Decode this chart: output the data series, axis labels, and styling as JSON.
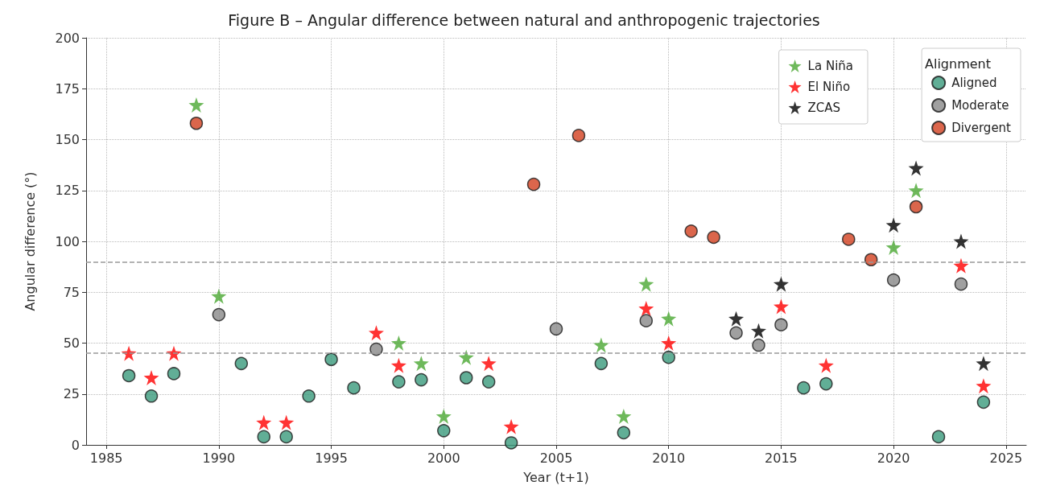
{
  "chart_data": {
    "type": "scatter",
    "title": "Figure B – Angular difference between natural and anthropogenic trajectories",
    "xlabel": "Year (t+1)",
    "ylabel": "Angular difference (°)",
    "legend_title": "Alignment",
    "xlim": [
      1984.1,
      2025.9
    ],
    "xticks": [
      1985,
      1990,
      1995,
      2000,
      2005,
      2010,
      2015,
      2020,
      2025
    ],
    "ylim": [
      0,
      200
    ],
    "yticks": [
      0,
      25,
      50,
      75,
      100,
      125,
      150,
      175,
      200
    ],
    "grid": true,
    "legend": "top right",
    "ref_lines": [
      {
        "axis": "y",
        "value": 45,
        "color": "#999999",
        "line_style": "dashed"
      },
      {
        "axis": "y",
        "value": 90,
        "color": "#999999",
        "line_style": "dashed"
      }
    ],
    "series": [
      {
        "name": "La Niña",
        "color": "#4aa832",
        "marker": "star",
        "x": [
          1989,
          1990,
          1998,
          1999,
          2000,
          2001,
          2007,
          2008,
          2009,
          2010,
          2020,
          2021
        ],
        "values": [
          167,
          73,
          50,
          40,
          14,
          43,
          49,
          14,
          79,
          62,
          97,
          125
        ]
      },
      {
        "name": "El Niño",
        "color": "#ff0000",
        "marker": "star",
        "x": [
          1986,
          1987,
          1988,
          1992,
          1993,
          1997,
          1998,
          2002,
          2003,
          2009,
          2010,
          2015,
          2017,
          2023,
          2024
        ],
        "values": [
          45,
          33,
          45,
          11,
          11,
          55,
          39,
          40,
          9,
          67,
          50,
          68,
          39,
          88,
          29
        ]
      },
      {
        "name": "ZCAS",
        "color": "#000000",
        "marker": "star",
        "x": [
          2013,
          2014,
          2015,
          2020,
          2021,
          2023,
          2024
        ],
        "values": [
          62,
          56,
          79,
          108,
          136,
          100,
          40
        ]
      },
      {
        "name": "Aligned",
        "color": "#3a9a7c",
        "marker": "circle",
        "x": [
          1986,
          1987,
          1988,
          1991,
          1992,
          1993,
          1994,
          1995,
          1996,
          1998,
          1999,
          2000,
          2001,
          2002,
          2003,
          2007,
          2008,
          2010,
          2016,
          2017,
          2022,
          2024
        ],
        "values": [
          34,
          24,
          35,
          40,
          4,
          4,
          24,
          42,
          28,
          31,
          32,
          7,
          33,
          31,
          1,
          40,
          6,
          43,
          28,
          30,
          4,
          21
        ]
      },
      {
        "name": "Moderate",
        "color": "#888888",
        "marker": "circle",
        "x": [
          1990,
          1997,
          2005,
          2009,
          2013,
          2014,
          2015,
          2020,
          2023
        ],
        "values": [
          64,
          47,
          57,
          61,
          55,
          49,
          59,
          81,
          79
        ]
      },
      {
        "name": "Divergent",
        "color": "#d2401f",
        "marker": "circle",
        "x": [
          1989,
          2004,
          2006,
          2011,
          2012,
          2018,
          2019,
          2021
        ],
        "values": [
          158,
          128,
          152,
          105,
          102,
          101,
          91,
          117
        ]
      }
    ]
  }
}
